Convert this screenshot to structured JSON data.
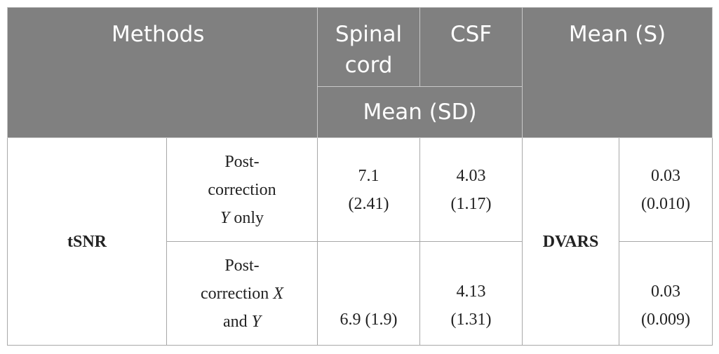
{
  "header": {
    "methods": "Methods",
    "spinal_cord": [
      "Spinal",
      "cord"
    ],
    "csf": "CSF",
    "mean_s": "Mean (S)",
    "mean_sd": "Mean (SD)"
  },
  "rows": {
    "metric_tsnr": "tSNR",
    "metric_dvars": "DVARS",
    "y_only": {
      "method_line1": "Post-",
      "method_line2": "correction",
      "method_var": "Y",
      "method_rest": " only",
      "spinal_mean": "7.1",
      "spinal_sd": "(2.41)",
      "csf_mean": "4.03",
      "csf_sd": "(1.17)",
      "dvars_mean": "0.03",
      "dvars_sd": "(0.010)"
    },
    "x_and_y": {
      "method_line1": "Post-",
      "method_line2_prefix": "correction ",
      "method_var1": "X",
      "method_line3_prefix": "and ",
      "method_var2": "Y",
      "spinal_value": "6.9 (1.9)",
      "csf_mean": "4.13",
      "csf_sd": "(1.31)",
      "dvars_mean": "0.03",
      "dvars_sd": "(0.009)"
    }
  }
}
